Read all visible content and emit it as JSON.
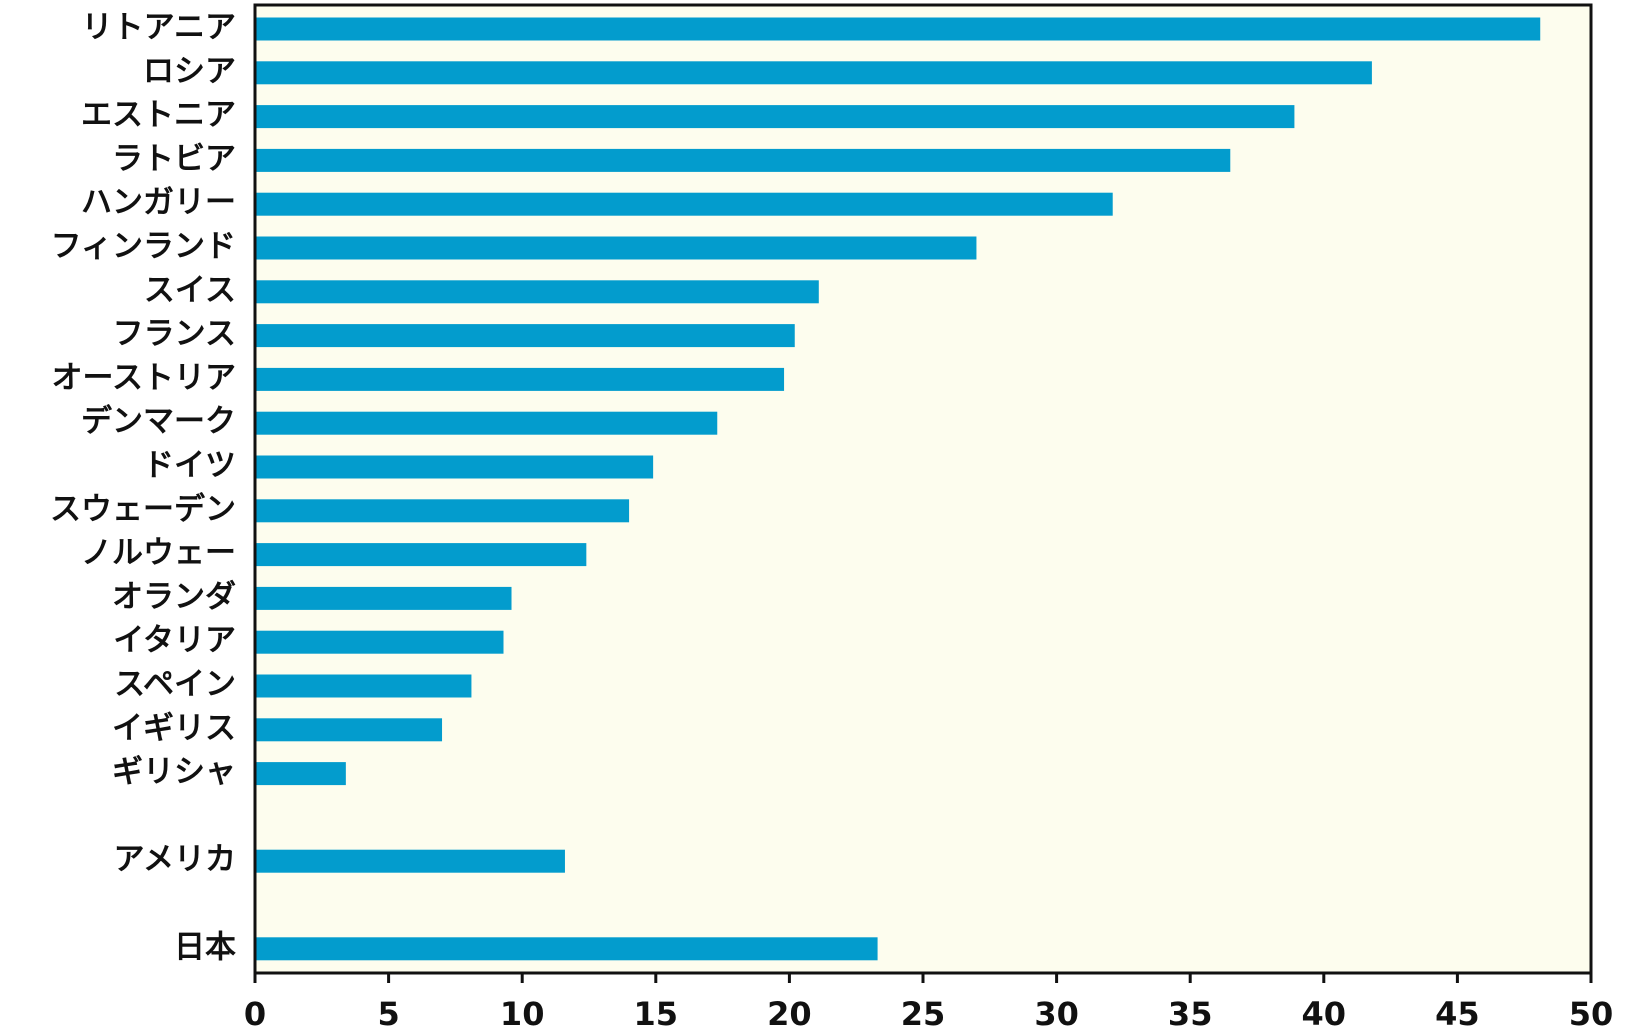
{
  "chart_data": {
    "type": "bar",
    "orientation": "horizontal",
    "categories": [
      "リトアニア",
      "ロシア",
      "エストニア",
      "ラトビア",
      "ハンガリー",
      "フィンランド",
      "スイス",
      "フランス",
      "オーストリア",
      "デンマーク",
      "ドイツ",
      "スウェーデン",
      "ノルウェー",
      "オランダ",
      "イタリア",
      "スペイン",
      "イギリス",
      "ギリシャ",
      null,
      "アメリカ",
      null,
      "日本"
    ],
    "values": [
      48.1,
      41.8,
      38.9,
      36.5,
      32.1,
      27.0,
      21.1,
      20.2,
      19.8,
      17.3,
      14.9,
      14.0,
      12.4,
      9.6,
      9.3,
      8.1,
      7.0,
      3.4,
      null,
      11.6,
      null,
      23.3
    ],
    "color": "#039ccd",
    "xlim": [
      0,
      50
    ],
    "xticks": [
      0,
      5,
      10,
      15,
      20,
      25,
      30,
      35,
      40,
      45,
      50
    ],
    "plot_background": "#fdfdee"
  }
}
